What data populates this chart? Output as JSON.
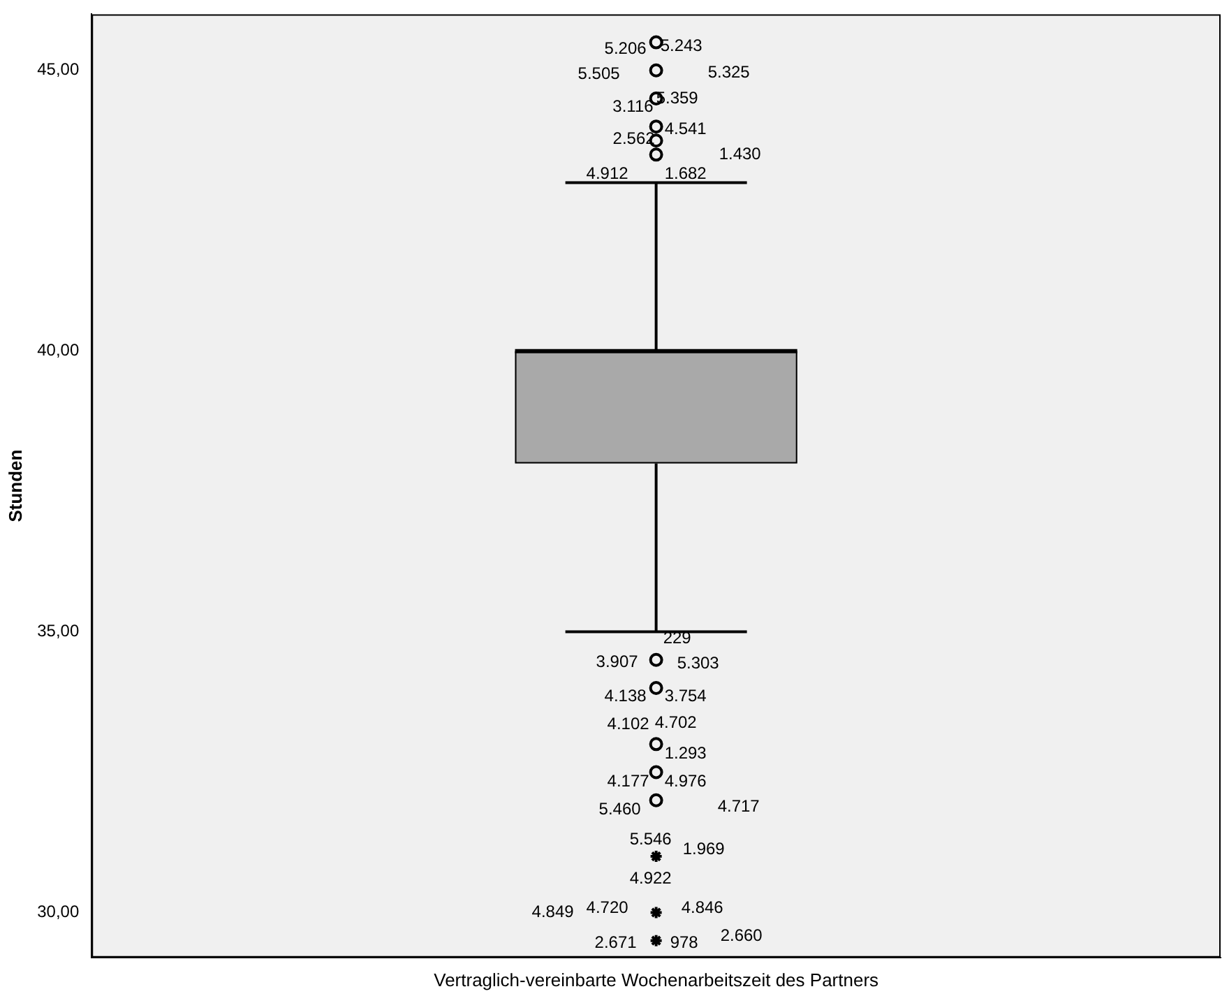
{
  "chart_data": {
    "type": "box",
    "ylabel": "Stunden",
    "categories": [
      "Vertraglich-vereinbarte Wochenarbeitszeit des Partners"
    ],
    "boxes": [
      {
        "low": 35,
        "q1": 38,
        "median": 40,
        "q3": 40,
        "high": 43,
        "outliers": [
          45.5,
          45,
          44.5,
          44,
          43.75,
          43.5,
          34.5,
          34,
          33,
          32.5,
          32,
          31,
          30,
          29.5
        ]
      }
    ],
    "color": "#a9a9a9",
    "ylim": [
      29.2,
      46
    ],
    "yticks": [
      {
        "value": 30,
        "label": "30,00"
      },
      {
        "value": 35,
        "label": "35,00"
      },
      {
        "value": 40,
        "label": "40,00"
      },
      {
        "value": 45,
        "label": "45,00"
      }
    ],
    "grid": false,
    "legend": false,
    "annotations": [
      "5.206",
      "5.243",
      "5.505",
      "5.325",
      "3.116",
      "5.359",
      "2.562",
      "4.541",
      "4.912",
      "1.430",
      "1.682",
      "3.907",
      "229",
      "5.303",
      "4.138",
      "3.754",
      "4.102",
      "4.702",
      "1.293",
      "4.177",
      "4.976",
      "5.460",
      "4.717",
      "5.546",
      "1.969",
      "4.922",
      "4.849",
      "4.846",
      "4.720",
      "2.671",
      "978",
      "2.660"
    ]
  }
}
